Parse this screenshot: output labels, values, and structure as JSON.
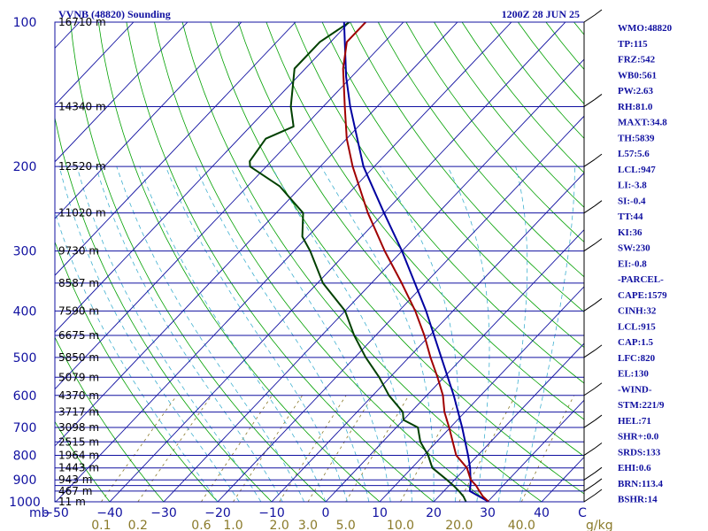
{
  "header": {
    "station": "VVNB (48820) Sounding",
    "time": "1200Z 28 JUN 25"
  },
  "axis": {
    "pressure_unit": "mb",
    "temp_unit": "C",
    "mix_unit": "g/kg"
  },
  "chart_data": {
    "type": "skew-t",
    "pressure_levels": [
      100,
      200,
      300,
      400,
      500,
      600,
      700,
      800,
      900,
      1000
    ],
    "isobars": [
      100,
      150,
      200,
      250,
      300,
      350,
      400,
      450,
      500,
      550,
      600,
      650,
      700,
      750,
      800,
      850,
      900,
      925,
      950,
      1000
    ],
    "height_labels": [
      {
        "p": 100,
        "label": "16710 m"
      },
      {
        "p": 150,
        "label": "14340 m"
      },
      {
        "p": 200,
        "label": "12520 m"
      },
      {
        "p": 250,
        "label": "11020 m"
      },
      {
        "p": 300,
        "label": "9730 m"
      },
      {
        "p": 350,
        "label": "8587 m"
      },
      {
        "p": 400,
        "label": "7590 m"
      },
      {
        "p": 450,
        "label": "6675 m"
      },
      {
        "p": 500,
        "label": "5850 m"
      },
      {
        "p": 550,
        "label": "5079 m"
      },
      {
        "p": 600,
        "label": "4370 m"
      },
      {
        "p": 650,
        "label": "3717 m"
      },
      {
        "p": 700,
        "label": "3098 m"
      },
      {
        "p": 750,
        "label": "2515 m"
      },
      {
        "p": 800,
        "label": "1964 m"
      },
      {
        "p": 850,
        "label": "1443 m"
      },
      {
        "p": 900,
        "label": "943 m"
      },
      {
        "p": 950,
        "label": "467 m"
      },
      {
        "p": 1000,
        "label": "11 m"
      }
    ],
    "temp_ticks": [
      -50,
      -40,
      -30,
      -20,
      -10,
      0,
      10,
      20,
      30,
      40
    ],
    "mixing_ratio_labels": [
      "0.1",
      "0.2",
      "0.6",
      "1.0",
      "2.0",
      "3.0",
      "5.0",
      "10.0",
      "20.0",
      "40.0"
    ],
    "temperature_profile": [
      [
        1000,
        30.2
      ],
      [
        975,
        28.2
      ],
      [
        950,
        26.6
      ],
      [
        925,
        25.0
      ],
      [
        900,
        23.0
      ],
      [
        850,
        20.2
      ],
      [
        800,
        16.0
      ],
      [
        750,
        13.0
      ],
      [
        700,
        9.8
      ],
      [
        650,
        6.2
      ],
      [
        600,
        3.0
      ],
      [
        550,
        -1.2
      ],
      [
        500,
        -6.0
      ],
      [
        450,
        -11.0
      ],
      [
        400,
        -17.0
      ],
      [
        350,
        -24.4
      ],
      [
        300,
        -33.2
      ],
      [
        250,
        -43.0
      ],
      [
        200,
        -54.0
      ],
      [
        175,
        -60.0
      ],
      [
        150,
        -66.0
      ],
      [
        125,
        -73.0
      ],
      [
        110,
        -77.0
      ],
      [
        100,
        -77.0
      ]
    ],
    "dewpoint_profile": [
      [
        1000,
        26.0
      ],
      [
        975,
        24.6
      ],
      [
        950,
        22.8
      ],
      [
        925,
        20.8
      ],
      [
        900,
        18.6
      ],
      [
        850,
        13.8
      ],
      [
        800,
        10.8
      ],
      [
        750,
        7.0
      ],
      [
        700,
        4.0
      ],
      [
        675,
        0.0
      ],
      [
        650,
        -1.5
      ],
      [
        600,
        -7.0
      ],
      [
        550,
        -12.0
      ],
      [
        500,
        -18.0
      ],
      [
        450,
        -24.0
      ],
      [
        400,
        -30.0
      ],
      [
        350,
        -39.0
      ],
      [
        300,
        -47.0
      ],
      [
        280,
        -51.0
      ],
      [
        250,
        -55.0
      ],
      [
        220,
        -64.0
      ],
      [
        200,
        -73.0
      ],
      [
        195,
        -74.0
      ],
      [
        175,
        -75.0
      ],
      [
        165,
        -72.0
      ],
      [
        150,
        -76.0
      ],
      [
        125,
        -82.0
      ],
      [
        110,
        -82.0
      ],
      [
        100,
        -80.0
      ]
    ],
    "parcel_profile": [
      [
        1000,
        30.2
      ],
      [
        950,
        24.8
      ],
      [
        915,
        23.6
      ],
      [
        850,
        20.8
      ],
      [
        800,
        18.2
      ],
      [
        700,
        12.2
      ],
      [
        600,
        5.0
      ],
      [
        500,
        -4.0
      ],
      [
        400,
        -15.0
      ],
      [
        300,
        -30.0
      ],
      [
        250,
        -40.0
      ],
      [
        200,
        -52.0
      ],
      [
        150,
        -65.0
      ],
      [
        130,
        -71.0
      ],
      [
        100,
        -81.0
      ]
    ]
  },
  "indices": [
    "WMO:48820",
    "TP:115",
    "FRZ:542",
    "WB0:561",
    "PW:2.63",
    "RH:81.0",
    "MAXT:34.8",
    "TH:5839",
    "L57:5.6",
    "LCL:947",
    "LI:-3.8",
    "SI:-0.4",
    "TT:44",
    "KI:36",
    "SW:230",
    "EI:-0.8",
    "-PARCEL-",
    "CAPE:1579",
    "CINH:32",
    "LCL:915",
    "CAP:1.5",
    "LFC:820",
    "EL:130",
    "-WIND-",
    "STM:221/9",
    "HEL:71",
    "SHR+:0.0",
    "SRDS:133",
    "EHI:0.6",
    "BRN:113.4",
    "BSHR:14"
  ],
  "colors": {
    "frame": "#1010a0",
    "temperature": "#a00000",
    "dewpoint": "#004000",
    "parcel": "#0000a0",
    "dry_adiabat": "#00a000",
    "moist_adiabat": "#40b0d0",
    "mixing_ratio": "#8a7a2a"
  }
}
